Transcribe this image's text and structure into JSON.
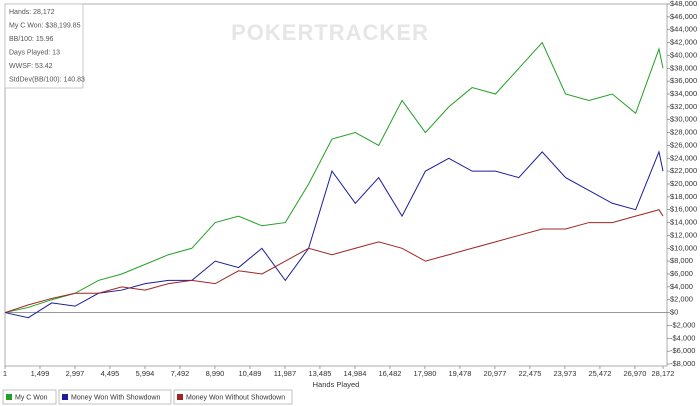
{
  "chart_data": {
    "type": "line",
    "watermark": "POKERTRACKER",
    "stats": [
      "Hands: 28,172",
      "My C Won: $38,199.85",
      "BB/100: 15.96",
      "Days Played: 13",
      "WWSF: 53.42",
      "StdDev(BB/100): 140.83"
    ],
    "x_label": "Hands Played",
    "x": [
      1,
      1000,
      2000,
      3000,
      4000,
      5000,
      6000,
      7000,
      8000,
      9000,
      10000,
      11000,
      12000,
      13000,
      14000,
      15000,
      16000,
      17000,
      18000,
      19000,
      20000,
      21000,
      22000,
      23000,
      24000,
      25000,
      26000,
      27000,
      28000,
      28172
    ],
    "series": [
      {
        "name": "My C Won",
        "color": "#22a022",
        "values": [
          0,
          800,
          2000,
          3000,
          5000,
          6000,
          7500,
          9000,
          10000,
          14000,
          15000,
          13500,
          14000,
          20000,
          27000,
          28000,
          26000,
          33000,
          28000,
          32000,
          35000,
          34000,
          38000,
          42000,
          34000,
          33000,
          34000,
          31000,
          41000,
          38000
        ]
      },
      {
        "name": "Money Won With Showdown",
        "color": "#1c1c9c",
        "values": [
          0,
          -800,
          1500,
          1000,
          3000,
          3500,
          4500,
          5000,
          5000,
          8000,
          7000,
          10000,
          5000,
          10000,
          22000,
          17000,
          21000,
          15000,
          22000,
          24000,
          22000,
          22000,
          21000,
          25000,
          21000,
          19000,
          17000,
          16000,
          25000,
          22000
        ]
      },
      {
        "name": "Money Won Without Showdown",
        "color": "#a02424",
        "values": [
          0,
          1200,
          2200,
          3000,
          3000,
          4000,
          3500,
          4500,
          5000,
          4500,
          6500,
          6000,
          8000,
          10000,
          9000,
          10000,
          11000,
          10000,
          8000,
          9000,
          10000,
          11000,
          12000,
          13000,
          13000,
          14000,
          14000,
          15000,
          16000,
          15000
        ]
      }
    ],
    "xlim": [
      1,
      28172
    ],
    "xticks": [
      1,
      {
        "value": 1499,
        "label": "1,499"
      },
      {
        "value": 2997,
        "label": "2,997"
      },
      {
        "value": 4495,
        "label": "4,495"
      },
      {
        "value": 5994,
        "label": "5,994"
      },
      {
        "value": 7492,
        "label": "7,492"
      },
      {
        "value": 8990,
        "label": "8,990"
      },
      {
        "value": 10489,
        "label": "10,489"
      },
      {
        "value": 11987,
        "label": "11,987"
      },
      {
        "value": 13485,
        "label": "13,485"
      },
      {
        "value": 14984,
        "label": "14,984"
      },
      {
        "value": 16482,
        "label": "16,482"
      },
      {
        "value": 17980,
        "label": "17,980"
      },
      {
        "value": 19478,
        "label": "19,478"
      },
      {
        "value": 20977,
        "label": "20,977"
      },
      {
        "value": 22475,
        "label": "22,475"
      },
      {
        "value": 23973,
        "label": "23,973"
      },
      {
        "value": 25472,
        "label": "25,472"
      },
      {
        "value": 26970,
        "label": "26,970"
      },
      {
        "value": 28172,
        "label": "28,172"
      }
    ],
    "ylim": [
      -8000,
      48000
    ],
    "yticks": [
      {
        "value": -8000,
        "label": "-$8,000"
      },
      {
        "value": -6000,
        "label": "-$6,000"
      },
      {
        "value": -4000,
        "label": "-$4,000"
      },
      {
        "value": -2000,
        "label": "-$2,000"
      },
      {
        "value": 0,
        "label": "$0"
      },
      {
        "value": 2000,
        "label": "$2,000"
      },
      {
        "value": 4000,
        "label": "$4,000"
      },
      {
        "value": 6000,
        "label": "$6,000"
      },
      {
        "value": 8000,
        "label": "$8,000"
      },
      {
        "value": 10000,
        "label": "$10,000"
      },
      {
        "value": 12000,
        "label": "$12,000"
      },
      {
        "value": 14000,
        "label": "$14,000"
      },
      {
        "value": 16000,
        "label": "$16,000"
      },
      {
        "value": 18000,
        "label": "$18,000"
      },
      {
        "value": 20000,
        "label": "$20,000"
      },
      {
        "value": 22000,
        "label": "$22,000"
      },
      {
        "value": 24000,
        "label": "$24,000"
      },
      {
        "value": 26000,
        "label": "$26,000"
      },
      {
        "value": 28000,
        "label": "$28,000"
      },
      {
        "value": 30000,
        "label": "$30,000"
      },
      {
        "value": 32000,
        "label": "$32,000"
      },
      {
        "value": 34000,
        "label": "$34,000"
      },
      {
        "value": 36000,
        "label": "$36,000"
      },
      {
        "value": 38000,
        "label": "$38,000"
      },
      {
        "value": 40000,
        "label": "$40,000"
      },
      {
        "value": 42000,
        "label": "$42,000"
      },
      {
        "value": 44000,
        "label": "$44,000"
      },
      {
        "value": 46000,
        "label": "$46,000"
      },
      {
        "value": 48000,
        "label": "$48,000"
      }
    ],
    "grid": false,
    "legend": "bottom"
  }
}
